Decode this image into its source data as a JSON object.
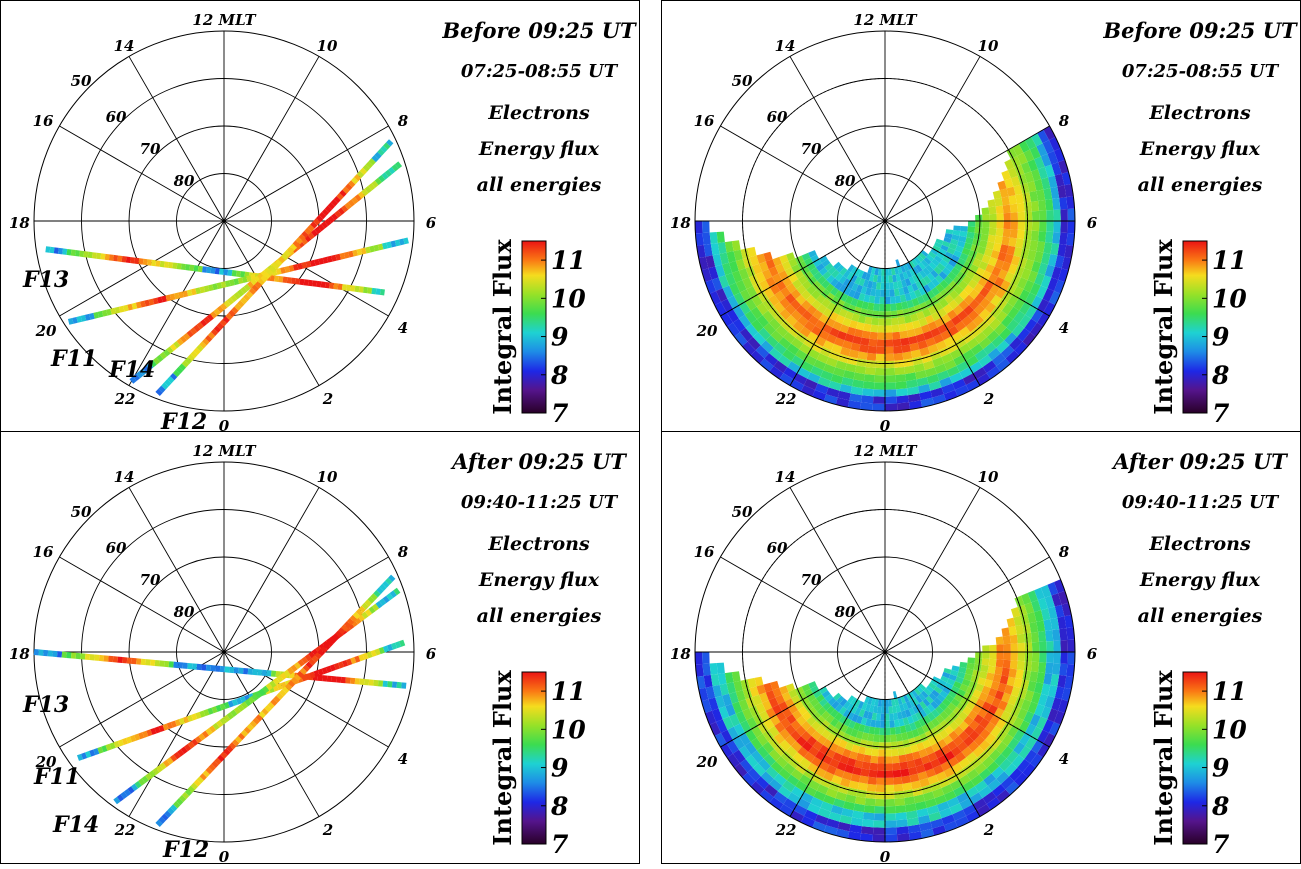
{
  "chart_data": [
    {
      "type": "polar-dial",
      "panel": "top-left",
      "period": "Before 09:25 UT",
      "time_range": "07:25-08:55 UT",
      "quantity_lines": [
        "Electrons",
        "Energy flux",
        "all energies"
      ],
      "mlt_ticks": [
        "12 MLT",
        "14",
        "16",
        "18",
        "20",
        "22",
        "0",
        "2",
        "4",
        "6",
        "8",
        "10"
      ],
      "mlat_rings": [
        "50",
        "60",
        "70",
        "80"
      ],
      "colorbar": {
        "label": "Integral Flux",
        "ticks": [
          "11",
          "10",
          "9",
          "8",
          "7"
        ],
        "range": [
          7,
          11.5
        ]
      },
      "tracks": [
        {
          "name": "F13",
          "start": {
            "mlt": 18.6,
            "mlat": 52
          },
          "end": {
            "mlt": 4.4,
            "mlat": 53
          }
        },
        {
          "name": "F11",
          "start": {
            "mlt": 20.2,
            "mlat": 51
          },
          "end": {
            "mlt": 5.6,
            "mlat": 51
          }
        },
        {
          "name": "F14",
          "start": {
            "mlt": 22.0,
            "mlat": 51
          },
          "end": {
            "mlt": 7.2,
            "mlat": 51
          }
        },
        {
          "name": "F12",
          "start": {
            "mlt": 22.6,
            "mlat": 51
          },
          "end": {
            "mlt": 7.7,
            "mlat": 51
          }
        }
      ]
    },
    {
      "type": "polar-dial",
      "panel": "top-right",
      "period": "Before 09:25 UT",
      "time_range": "07:25-08:55 UT",
      "quantity_lines": [
        "Electrons",
        "Energy flux",
        "all energies"
      ],
      "mlt_ticks": [
        "12 MLT",
        "14",
        "16",
        "18",
        "20",
        "22",
        "0",
        "2",
        "4",
        "6",
        "8",
        "10"
      ],
      "mlat_rings": [
        "50",
        "60",
        "70",
        "80"
      ],
      "colorbar": {
        "label": "Integral Flux",
        "ticks": [
          "11",
          "10",
          "9",
          "8",
          "7"
        ],
        "range": [
          7,
          11.5
        ]
      },
      "map": {
        "mlt_coverage": [
          18,
          8
        ],
        "oval_peak_mlat": 63,
        "oval_peak_flux": 11.2
      }
    },
    {
      "type": "polar-dial",
      "panel": "bottom-left",
      "period": "After 09:25 UT",
      "time_range": "09:40-11:25 UT",
      "quantity_lines": [
        "Electrons",
        "Energy flux",
        "all energies"
      ],
      "mlt_ticks": [
        "12 MLT",
        "14",
        "16",
        "18",
        "20",
        "22",
        "0",
        "2",
        "4",
        "6",
        "8",
        "10"
      ],
      "mlat_rings": [
        "50",
        "60",
        "70",
        "80"
      ],
      "colorbar": {
        "label": "Integral Flux",
        "ticks": [
          "11",
          "10",
          "9",
          "8",
          "7"
        ],
        "range": [
          7,
          11.5
        ]
      },
      "tracks": [
        {
          "name": "F13",
          "start": {
            "mlt": 18.0,
            "mlat": 50
          },
          "end": {
            "mlt": 5.3,
            "mlat": 51
          }
        },
        {
          "name": "F11",
          "start": {
            "mlt": 20.4,
            "mlat": 52
          },
          "end": {
            "mlt": 6.2,
            "mlat": 52
          }
        },
        {
          "name": "F14",
          "start": {
            "mlt": 21.6,
            "mlat": 51
          },
          "end": {
            "mlt": 7.3,
            "mlat": 51
          }
        },
        {
          "name": "F12",
          "start": {
            "mlt": 22.6,
            "mlat": 51
          },
          "end": {
            "mlt": 7.6,
            "mlat": 51
          }
        }
      ]
    },
    {
      "type": "polar-dial",
      "panel": "bottom-right",
      "period": "After 09:25 UT",
      "time_range": "09:40-11:25 UT",
      "quantity_lines": [
        "Electrons",
        "Energy flux",
        "all energies"
      ],
      "mlt_ticks": [
        "12 MLT",
        "14",
        "16",
        "18",
        "20",
        "22",
        "0",
        "2",
        "4",
        "6",
        "8",
        "10"
      ],
      "mlat_rings": [
        "50",
        "60",
        "70",
        "80"
      ],
      "colorbar": {
        "label": "Integral Flux",
        "ticks": [
          "11",
          "10",
          "9",
          "8",
          "7"
        ],
        "range": [
          7,
          11.5
        ]
      },
      "map": {
        "mlt_coverage": [
          18,
          7.5
        ],
        "oval_peak_mlat": 64,
        "oval_peak_flux": 11.4
      }
    }
  ]
}
